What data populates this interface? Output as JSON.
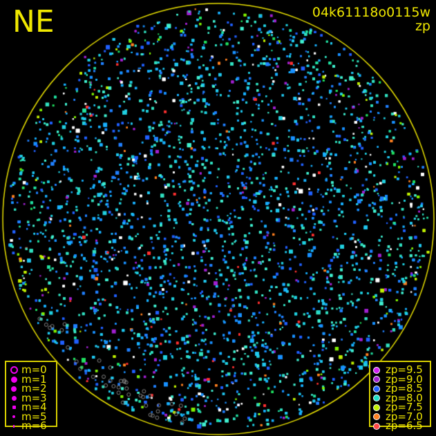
{
  "header": {
    "direction": "NE",
    "image_id": "04k61118o0115w",
    "mode": "zp"
  },
  "colors": {
    "circle": "#e8e000",
    "text": "#f0e800",
    "background": "#000000"
  },
  "magnitude_legend": [
    {
      "label": "m=0",
      "style": "ring"
    },
    {
      "label": "m=1",
      "style": "dot"
    },
    {
      "label": "m=2",
      "style": "dot"
    },
    {
      "label": "m=3",
      "style": "dot"
    },
    {
      "label": "m=4",
      "style": "dot"
    },
    {
      "label": "m=5",
      "style": "dot"
    },
    {
      "label": "m=6",
      "style": "dot"
    }
  ],
  "zp_legend": [
    {
      "label": "zp=9.5",
      "color": "#d020f0"
    },
    {
      "label": "zp=9.0",
      "color": "#a020d0"
    },
    {
      "label": "zp=8.5",
      "color": "#2060ff"
    },
    {
      "label": "zp=8.0",
      "color": "#20e0c8"
    },
    {
      "label": "zp=7.5",
      "color": "#c0f000"
    },
    {
      "label": "zp=7.0",
      "color": "#ff8020"
    },
    {
      "label": "zp=6.5",
      "color": "#ff4848"
    }
  ]
}
